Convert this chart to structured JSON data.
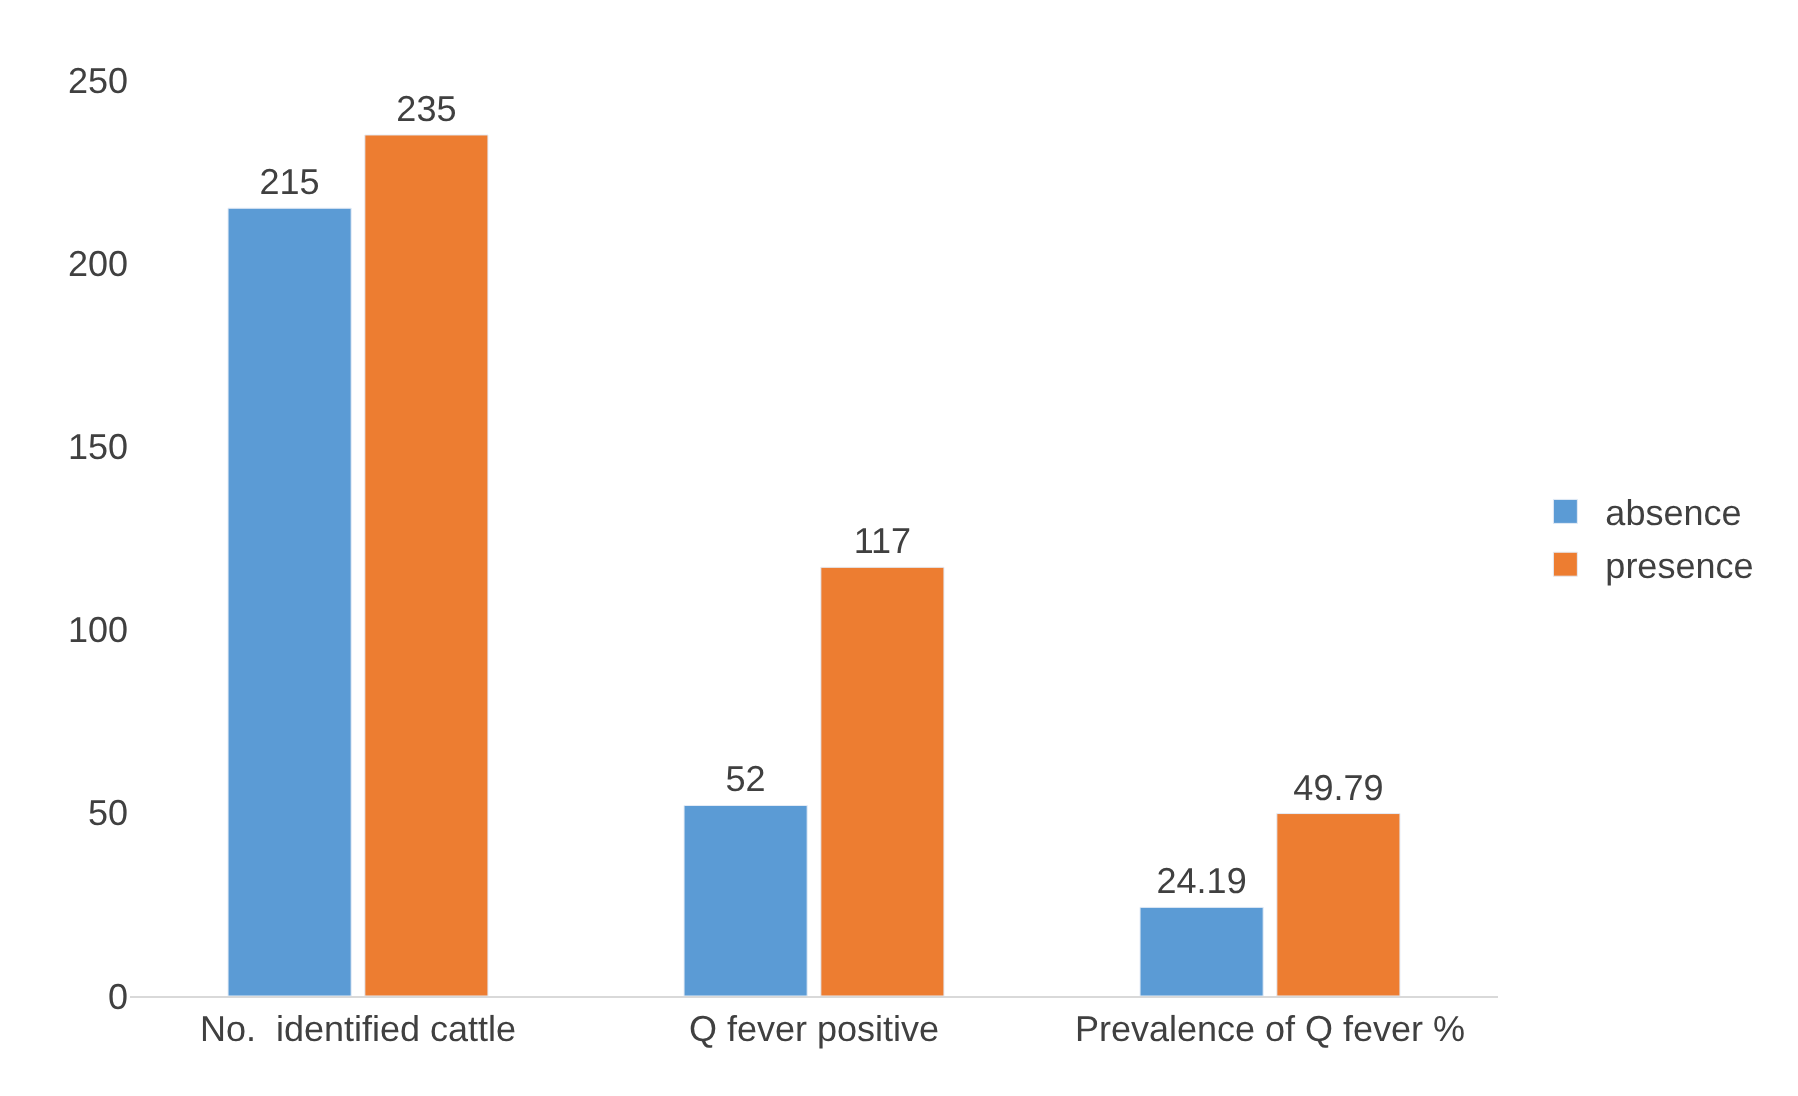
{
  "chart_data": {
    "type": "bar",
    "categories": [
      "No.  identified cattle",
      "Q fever positive",
      "Prevalence of Q fever %"
    ],
    "series": [
      {
        "name": "absence",
        "color": "#5b9bd5",
        "values": [
          215,
          52,
          24.19
        ]
      },
      {
        "name": "presence",
        "color": "#ed7d31",
        "values": [
          235,
          117,
          49.79
        ]
      }
    ],
    "ylim": [
      0,
      250
    ],
    "yticks": [
      0,
      50,
      100,
      150,
      200,
      250
    ],
    "grid": false,
    "legend": "right",
    "data_labels": true
  }
}
